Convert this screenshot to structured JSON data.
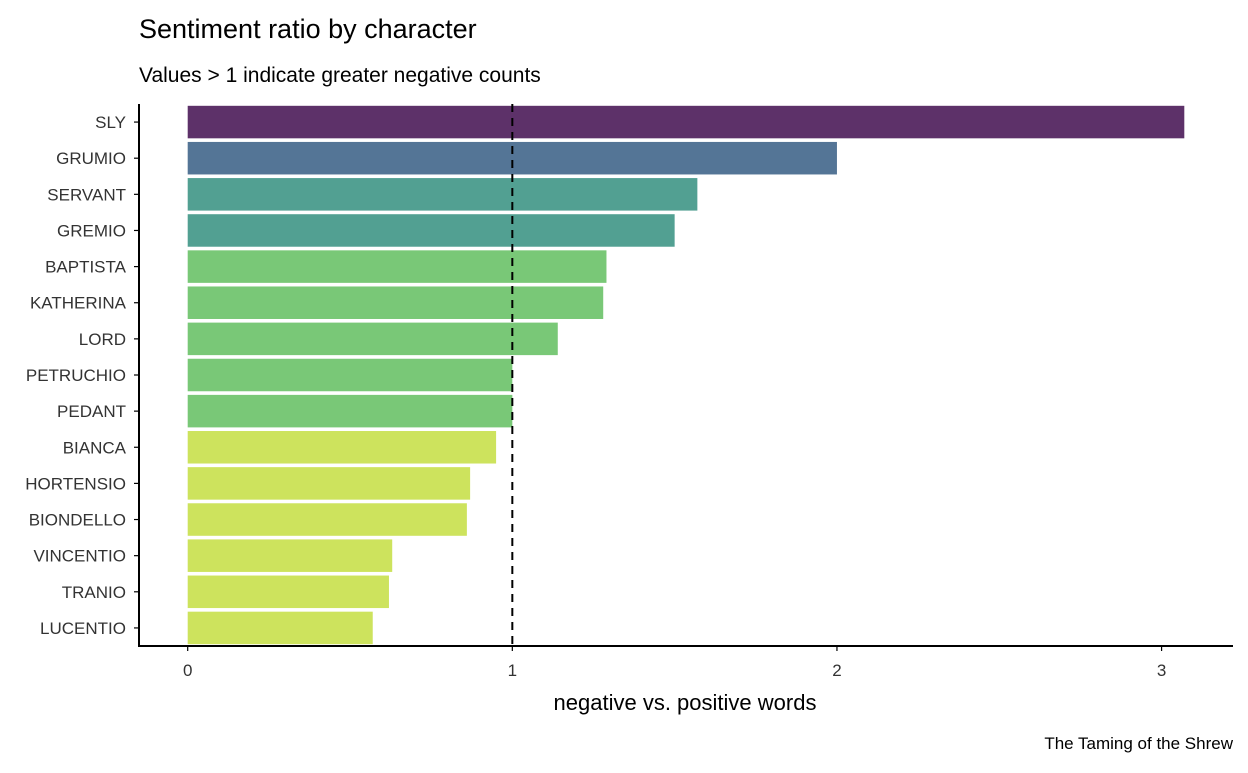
{
  "chart_data": {
    "type": "bar",
    "orientation": "horizontal",
    "title": "Sentiment ratio by character",
    "subtitle": "Values > 1 indicate greater negative counts",
    "xlabel": "negative vs. positive words",
    "ylabel": "",
    "caption": "The Taming of the Shrew",
    "xlim": [
      -0.15,
      3.22
    ],
    "x_ticks": [
      "0",
      "1",
      "2",
      "3"
    ],
    "reference_line": {
      "value": 1,
      "style": "dashed",
      "color": "#000000"
    },
    "grid": false,
    "legend": "none",
    "categories": [
      "SLY",
      "GRUMIO",
      "SERVANT",
      "GREMIO",
      "BAPTISTA",
      "KATHERINA",
      "LORD",
      "PETRUCHIO",
      "PEDANT",
      "BIANCA",
      "HORTENSIO",
      "BIONDELLO",
      "VINCENTIO",
      "TRANIO",
      "LUCENTIO"
    ],
    "values": [
      3.07,
      2.0,
      1.57,
      1.5,
      1.29,
      1.28,
      1.14,
      1.0,
      1.0,
      0.95,
      0.87,
      0.86,
      0.63,
      0.62,
      0.57
    ],
    "colors": [
      "#5d3169",
      "#547596",
      "#52a092",
      "#52a092",
      "#79c877",
      "#79c877",
      "#79c877",
      "#79c877",
      "#79c877",
      "#cde35d",
      "#cde35d",
      "#cde35d",
      "#cde35d",
      "#cde35d",
      "#cde35d"
    ]
  }
}
